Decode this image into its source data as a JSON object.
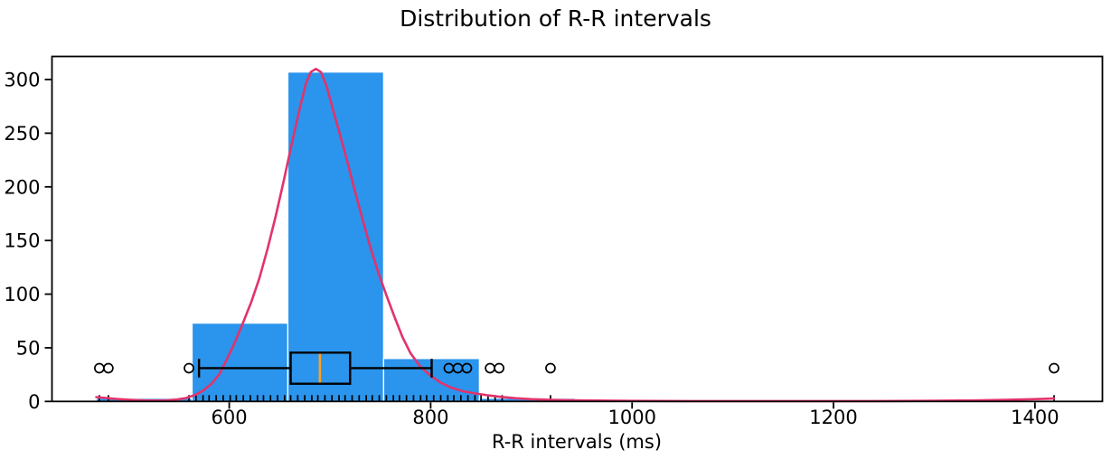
{
  "title": "Distribution of R-R intervals",
  "x_axis_label": "R-R intervals (ms)",
  "colors": {
    "histogram_fill": "#2B94EC",
    "bar_edge": "#FFFFFF",
    "kde_line": "#E2336B",
    "median_line": "#FFA01E",
    "box_line": "#000000",
    "axis": "#000000",
    "background": "#FFFFFF",
    "text": "#000000"
  },
  "chart_data": {
    "type": "histogram",
    "overlays": [
      "kde",
      "boxplot",
      "rug"
    ],
    "title": "Distribution of R-R intervals",
    "xlabel": "R-R intervals (ms)",
    "ylabel": "",
    "xlim": [
      424,
      1467
    ],
    "ylim": [
      0,
      321.5
    ],
    "xticks": [
      600,
      800,
      1000,
      1200,
      1400
    ],
    "yticks": [
      0,
      50,
      100,
      150,
      200,
      250,
      300
    ],
    "grid": false,
    "legend": null,
    "histogram": {
      "bin_edges": [
        468,
        563.1,
        658.2,
        753.3,
        848.4,
        943.5,
        1038.6,
        1133.7,
        1228.8,
        1323.9,
        1419
      ],
      "counts": [
        3,
        73,
        307,
        40,
        3,
        0,
        0,
        0,
        0,
        1
      ]
    },
    "kde_points": [
      [
        468,
        4
      ],
      [
        478,
        3.1
      ],
      [
        490,
        2.2
      ],
      [
        502,
        1.5
      ],
      [
        514,
        1.0
      ],
      [
        526,
        0.8
      ],
      [
        538,
        1.0
      ],
      [
        548,
        1.8
      ],
      [
        557,
        3.2
      ],
      [
        566,
        6
      ],
      [
        574,
        10
      ],
      [
        582,
        16
      ],
      [
        590,
        25
      ],
      [
        598,
        40
      ],
      [
        606,
        56
      ],
      [
        614,
        74
      ],
      [
        622,
        93
      ],
      [
        630,
        115
      ],
      [
        638,
        142
      ],
      [
        646,
        172
      ],
      [
        654,
        205
      ],
      [
        662,
        240
      ],
      [
        670,
        273
      ],
      [
        676,
        296
      ],
      [
        681,
        307
      ],
      [
        686,
        310
      ],
      [
        691,
        307
      ],
      [
        697,
        293
      ],
      [
        703,
        272
      ],
      [
        709,
        252
      ],
      [
        716,
        228
      ],
      [
        724,
        199
      ],
      [
        732,
        171
      ],
      [
        740,
        144
      ],
      [
        748,
        120
      ],
      [
        756,
        99
      ],
      [
        764,
        79
      ],
      [
        772,
        60
      ],
      [
        780,
        45
      ],
      [
        790,
        32
      ],
      [
        800,
        24
      ],
      [
        810,
        17.5
      ],
      [
        820,
        13
      ],
      [
        832,
        9.5
      ],
      [
        844,
        7.5
      ],
      [
        856,
        5.8
      ],
      [
        870,
        4.2
      ],
      [
        884,
        3.0
      ],
      [
        900,
        2.1
      ],
      [
        920,
        1.4
      ],
      [
        950,
        0.9
      ],
      [
        1000,
        0.5
      ],
      [
        1060,
        0.35
      ],
      [
        1120,
        0.3
      ],
      [
        1180,
        0.3
      ],
      [
        1240,
        0.35
      ],
      [
        1300,
        0.6
      ],
      [
        1340,
        0.9
      ],
      [
        1370,
        1.4
      ],
      [
        1395,
        2.0
      ],
      [
        1412,
        2.5
      ],
      [
        1419,
        2.8
      ]
    ],
    "boxplot": {
      "whisker_low": 570,
      "q1": 661,
      "median": 690,
      "q3": 720,
      "whisker_high": 801,
      "outliers": [
        471,
        480,
        560,
        818,
        827,
        836,
        859,
        868,
        919,
        1419
      ],
      "center_y": 31,
      "box_half_height": 14.5,
      "cap_half_height": 8.7
    },
    "rug": [
      471,
      480,
      560,
      567,
      574,
      580,
      587,
      594,
      601,
      607,
      614,
      621,
      628,
      634,
      641,
      648,
      655,
      661,
      668,
      675,
      682,
      688,
      695,
      702,
      709,
      715,
      722,
      729,
      736,
      742,
      749,
      756,
      763,
      769,
      776,
      783,
      790,
      796,
      803,
      810,
      817,
      823,
      830,
      837,
      844,
      850,
      857,
      864,
      871,
      919,
      1419
    ]
  }
}
